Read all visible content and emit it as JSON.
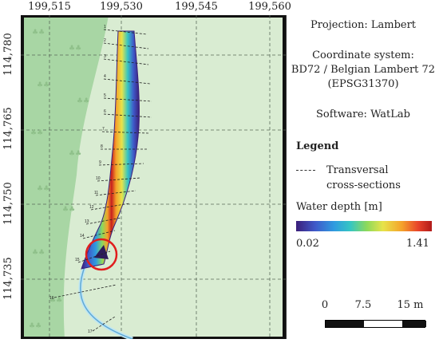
{
  "map": {
    "top_ticks": [
      "199,515",
      "199,530",
      "199,545",
      "199,560"
    ],
    "left_ticks": [
      "114,780",
      "114,765",
      "114,750",
      "114,735"
    ],
    "section_numbers": [
      "1",
      "2",
      "3",
      "4",
      "5",
      "6",
      "7",
      "8",
      "9",
      "10",
      "11",
      "12",
      "13",
      "14",
      "15",
      "16",
      "17"
    ]
  },
  "info": {
    "projection": "Projection: Lambert",
    "coordinate_system": "Coordinate system:",
    "crs_name": "BD72 / Belgian Lambert 72",
    "crs_code": "(EPSG31370)",
    "software": "Software: WatLab"
  },
  "legend": {
    "title": "Legend",
    "cross_section_line1": "Transversal",
    "cross_section_line2": "cross-sections",
    "water_depth_title": "Water depth [m]",
    "depth_min": "0.02",
    "depth_max": "1.41",
    "colors": [
      "#3b1f7a",
      "#3f59c9",
      "#2f9be0",
      "#35c6c3",
      "#8cd95b",
      "#e7e34a",
      "#f5a22a",
      "#e8432a",
      "#b01a1a"
    ]
  },
  "scale": {
    "label_0": "0",
    "label_mid": "7.5",
    "label_end": "15 m"
  }
}
